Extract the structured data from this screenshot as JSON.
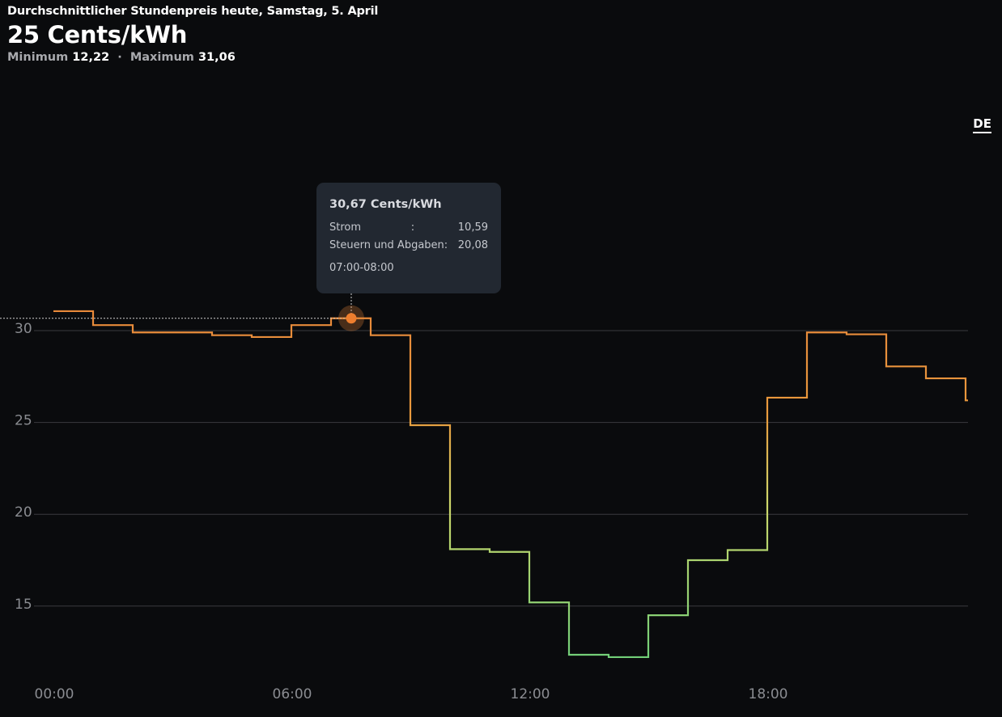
{
  "header": {
    "subtitle": "Durchschnittlicher Stundenpreis heute, Samstag, 5. April",
    "headline": "25 Cents/kWh",
    "min_label": "Minimum",
    "min_value": "12,22",
    "separator": "·",
    "max_label": "Maximum",
    "max_value": "31,06"
  },
  "region_selector": {
    "label": "DE"
  },
  "tooltip": {
    "title": "30,67 Cents/kWh",
    "rows": [
      {
        "label": "Strom",
        "sep": ":",
        "value": "10,59"
      },
      {
        "label": "Steuern und Abgaben:",
        "sep": "",
        "value": "20,08"
      }
    ],
    "time": "07:00-08:00"
  },
  "colors": {
    "background": "#0a0b0d",
    "high": "#e8893a",
    "mid": "#cfd76a",
    "low": "#78d07a",
    "grid": "#3a3b3f",
    "tooltip_bg": "#222831"
  },
  "chart_data": {
    "type": "line",
    "step": true,
    "x_unit": "hour",
    "x": [
      0,
      1,
      2,
      3,
      4,
      5,
      6,
      7,
      8,
      9,
      10,
      11,
      12,
      13,
      14,
      15,
      16,
      17,
      18,
      19,
      20,
      21,
      22,
      23
    ],
    "series": [
      {
        "values": [
          31.06,
          30.3,
          29.9,
          29.9,
          29.75,
          29.65,
          30.3,
          30.67,
          29.75,
          24.85,
          18.1,
          17.95,
          15.2,
          12.35,
          12.22,
          14.5,
          17.5,
          18.05,
          26.35,
          29.9,
          29.8,
          28.05,
          27.4,
          26.2
        ]
      }
    ],
    "x_ticks": [
      "00:00",
      "06:00",
      "12:00",
      "18:00"
    ],
    "y_ticks": [
      "15",
      "20",
      "25",
      "30"
    ],
    "ylim": [
      11.5,
      38.5
    ],
    "xlim": [
      0,
      24
    ],
    "grid": true,
    "highlight": {
      "index": 7,
      "value": 30.67
    }
  }
}
